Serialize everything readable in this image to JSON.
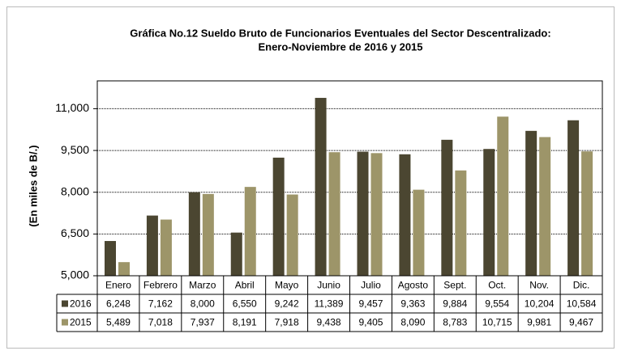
{
  "chart_data": {
    "type": "bar",
    "title": [
      "Gráfica No.12 Sueldo Bruto de Funcionarios Eventuales del Sector Descentralizado:",
      "Enero-Noviembre de 2016 y 2015"
    ],
    "y_label": "(En miles de B/.)",
    "categories": [
      "Enero",
      "Febrero",
      "Marzo",
      "Abril",
      "Mayo",
      "Junio",
      "Julio",
      "Agosto",
      "Sept.",
      "Oct.",
      "Nov.",
      "Dic."
    ],
    "series": [
      {
        "name": "2016",
        "color": "#4b4631",
        "values": [
          6248,
          7162,
          8000,
          6550,
          9242,
          11389,
          9457,
          9363,
          9884,
          9554,
          10204,
          10584
        ],
        "value_labels": [
          "6,248",
          "7,162",
          "8,000",
          "6,550",
          "9,242",
          "11,389",
          "9,457",
          "9,363",
          "9,884",
          "9,554",
          "10,204",
          "10,584"
        ]
      },
      {
        "name": "2015",
        "color": "#9d9569",
        "values": [
          5489,
          7018,
          7937,
          8191,
          7918,
          9438,
          9405,
          8090,
          8783,
          10715,
          9981,
          9467
        ],
        "value_labels": [
          "5,489",
          "7,018",
          "7,937",
          "8,191",
          "7,918",
          "9,438",
          "9,405",
          "8,090",
          "8,783",
          "10,715",
          "9,981",
          "9,467"
        ]
      }
    ],
    "ylim": [
      5000,
      12000
    ],
    "yticks": [
      {
        "value": 5000,
        "label": "5,000"
      },
      {
        "value": 6500,
        "label": "6,500"
      },
      {
        "value": 8000,
        "label": "8,000"
      },
      {
        "value": 9500,
        "label": "9,500"
      },
      {
        "value": 11000,
        "label": "11,000"
      }
    ],
    "grid": true
  }
}
